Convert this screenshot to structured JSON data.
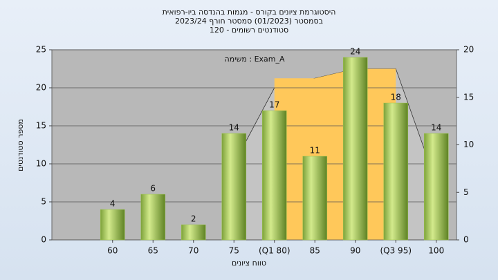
{
  "chart_data": {
    "type": "bar",
    "title": "היסטוגרמת ציונים בקורס - מגמות בהנדסה ביו-רפואית",
    "subtitle": "בסמסטר  (01/2023)  סמסטר חורף 2023/24",
    "subtitle2": "סטודנטים רשומים - 120",
    "annotation": "משימה : Exam_A",
    "ylabel": "מספר סטודנטים",
    "xlabel": "טווח ציונים",
    "categories": [
      null,
      "60",
      "65",
      "70",
      "75",
      "(Q1 80)",
      "85",
      "90",
      "(Q3 95)",
      "100"
    ],
    "values": [
      null,
      4,
      6,
      2,
      14,
      17,
      11,
      24,
      18,
      14
    ],
    "color": "#9cc450",
    "areas": [
      {
        "color": "#c4c4c4",
        "values": [
          null,
          null,
          null,
          null,
          8,
          16,
          17,
          18,
          18,
          6
        ]
      },
      {
        "color": "#ffc85a",
        "values": [
          null,
          null,
          null,
          null,
          null,
          17,
          17,
          18,
          18,
          null
        ]
      }
    ],
    "ylim": [
      0,
      25
    ],
    "yticks": [
      0,
      5,
      10,
      15,
      20,
      25
    ],
    "y2lim": [
      0,
      20
    ],
    "y2ticks": [
      0,
      5,
      10,
      15,
      20
    ],
    "grid": true
  }
}
